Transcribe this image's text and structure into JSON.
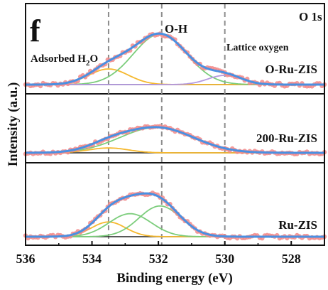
{
  "panel_letter": "f",
  "legend_text": "O 1s",
  "colors": {
    "data_points": "#f28a8a",
    "envelope": "#4a90e2",
    "adsorbed_h2o": "#f5b82e",
    "oh": "#7ccd7c",
    "lattice_oxygen": "#b59ae0",
    "baseline": "#222222",
    "guide_lines": "#8c8c8c"
  },
  "chart_data": {
    "type": "line",
    "xlabel": "Binding energy (eV)",
    "ylabel": "Intensity (a.u.)",
    "x_reversed": true,
    "xlim": [
      536.0,
      527.0
    ],
    "x_ticks": [
      536,
      534,
      532,
      530,
      528
    ],
    "y_ticks": [],
    "grid": false,
    "guide_lines_ev": [
      533.5,
      531.9,
      530.0
    ],
    "annotations": [
      {
        "text": "Adsorbed H",
        "sub": "2",
        "tail": "O",
        "x": 534.5,
        "panel": 0
      },
      {
        "text": "O-H",
        "sub": "",
        "tail": "",
        "x": 531.6,
        "panel": 0
      },
      {
        "text": "Lattice oxygen",
        "sub": "",
        "tail": "",
        "x": 529.8,
        "panel": 0
      }
    ],
    "panels": [
      {
        "label": "O-Ru-ZIS",
        "baseline": 0.0,
        "components": [
          {
            "name": "Adsorbed H2O",
            "center": 533.5,
            "fwhm": 1.4,
            "height": 0.22,
            "color_key": "adsorbed_h2o"
          },
          {
            "name": "O-H",
            "center": 531.95,
            "fwhm": 1.9,
            "height": 0.71,
            "color_key": "oh"
          },
          {
            "name": "Lattice oxygen",
            "center": 530.0,
            "fwhm": 1.2,
            "height": 0.13,
            "color_key": "lattice_oxygen"
          }
        ]
      },
      {
        "label": "200-Ru-ZIS",
        "baseline": 0.0,
        "components": [
          {
            "name": "Adsorbed H2O",
            "center": 533.5,
            "fwhm": 1.4,
            "height": 0.09,
            "color_key": "adsorbed_h2o"
          },
          {
            "name": "O-H",
            "center": 532.05,
            "fwhm": 2.6,
            "height": 0.47,
            "color_key": "oh"
          }
        ]
      },
      {
        "label": "Ru-ZIS",
        "baseline": 0.0,
        "components": [
          {
            "name": "Adsorbed H2O",
            "center": 533.5,
            "fwhm": 1.2,
            "height": 0.23,
            "color_key": "adsorbed_h2o"
          },
          {
            "name": "O-H",
            "center": 532.85,
            "fwhm": 1.5,
            "height": 0.36,
            "color_key": "oh"
          },
          {
            "name": "O-H",
            "center": 531.95,
            "fwhm": 1.5,
            "height": 0.48,
            "color_key": "oh"
          }
        ]
      }
    ]
  }
}
